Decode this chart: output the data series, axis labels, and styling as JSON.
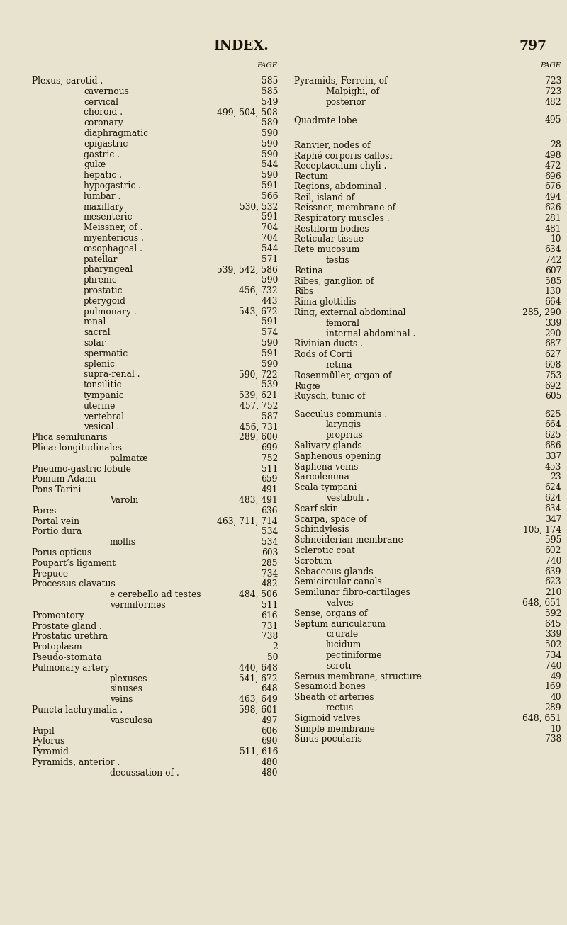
{
  "bg_color": "#e8e3ce",
  "text_color": "#1a1208",
  "title": "INDEX.",
  "page_num": "797",
  "left_entries": [
    {
      "text": "Plexus, carotid .",
      "indent": 0,
      "pages": "585"
    },
    {
      "text": "cavernous",
      "indent": 1,
      "pages": "585"
    },
    {
      "text": "cervical",
      "indent": 1,
      "pages": "549"
    },
    {
      "text": "choroid .",
      "indent": 1,
      "pages": "499, 504, 508"
    },
    {
      "text": "coronary",
      "indent": 1,
      "pages": "589"
    },
    {
      "text": "diaphragmatic",
      "indent": 1,
      "pages": "590"
    },
    {
      "text": "epigastric",
      "indent": 1,
      "pages": "590"
    },
    {
      "text": "gastric .",
      "indent": 1,
      "pages": "590"
    },
    {
      "text": "gulæ",
      "indent": 1,
      "pages": "544"
    },
    {
      "text": "hepatic .",
      "indent": 1,
      "pages": "590"
    },
    {
      "text": "hypogastric .",
      "indent": 1,
      "pages": "591"
    },
    {
      "text": "lumbar .",
      "indent": 1,
      "pages": "566"
    },
    {
      "text": "maxillary",
      "indent": 1,
      "pages": "530, 532"
    },
    {
      "text": "mesenteric",
      "indent": 1,
      "pages": "591"
    },
    {
      "text": "Meissner, of .",
      "indent": 1,
      "pages": "704"
    },
    {
      "text": "myentericus .",
      "indent": 1,
      "pages": "704"
    },
    {
      "text": "œsophageal .",
      "indent": 1,
      "pages": "544"
    },
    {
      "text": "patellar",
      "indent": 1,
      "pages": "571"
    },
    {
      "text": "pharyngeal",
      "indent": 1,
      "pages": "539, 542, 586"
    },
    {
      "text": "phrenic",
      "indent": 1,
      "pages": "590"
    },
    {
      "text": "prostatic",
      "indent": 1,
      "pages": "456, 732"
    },
    {
      "text": "pterygoid",
      "indent": 1,
      "pages": "443"
    },
    {
      "text": "pulmonary .",
      "indent": 1,
      "pages": "543, 672"
    },
    {
      "text": "renal",
      "indent": 1,
      "pages": "591"
    },
    {
      "text": "sacral",
      "indent": 1,
      "pages": "574"
    },
    {
      "text": "solar",
      "indent": 1,
      "pages": "590"
    },
    {
      "text": "spermatic",
      "indent": 1,
      "pages": "591"
    },
    {
      "text": "splenic",
      "indent": 1,
      "pages": "590"
    },
    {
      "text": "supra-renal .",
      "indent": 1,
      "pages": "590, 722"
    },
    {
      "text": "tonsilitic",
      "indent": 1,
      "pages": "539"
    },
    {
      "text": "tympanic",
      "indent": 1,
      "pages": "539, 621"
    },
    {
      "text": "uterine",
      "indent": 1,
      "pages": "457, 752"
    },
    {
      "text": "vertebral",
      "indent": 1,
      "pages": "587"
    },
    {
      "text": "vesical .",
      "indent": 1,
      "pages": "456, 731"
    },
    {
      "text": "Plica semilunaris",
      "indent": 0,
      "pages": "289, 600"
    },
    {
      "text": "Plicæ longitudinales",
      "indent": 0,
      "pages": "699"
    },
    {
      "text": "palmatæ",
      "indent": 2,
      "pages": "752"
    },
    {
      "text": "Pneumo-gastric lobule",
      "indent": 0,
      "pages": "511"
    },
    {
      "text": "Pomum Adami",
      "indent": 0,
      "pages": "659"
    },
    {
      "text": "Pons Tarini",
      "indent": 0,
      "pages": "491"
    },
    {
      "text": "Varolii",
      "indent": 2,
      "pages": "483, 491"
    },
    {
      "text": "Pores",
      "indent": 0,
      "pages": "636"
    },
    {
      "text": "Portal vein",
      "indent": 0,
      "pages": "463, 711, 714"
    },
    {
      "text": "Portio dura",
      "indent": 0,
      "pages": "534"
    },
    {
      "text": "mollis",
      "indent": 2,
      "pages": "534"
    },
    {
      "text": "Porus opticus",
      "indent": 0,
      "pages": "603"
    },
    {
      "text": "Poupart’s ligament",
      "indent": 0,
      "pages": "285"
    },
    {
      "text": "Prepuce",
      "indent": 0,
      "pages": "734"
    },
    {
      "text": "Processus clavatus",
      "indent": 0,
      "pages": "482"
    },
    {
      "text": "e cerebello ad testes",
      "indent": 2,
      "pages": "484, 506"
    },
    {
      "text": "vermiformes",
      "indent": 2,
      "pages": "511"
    },
    {
      "text": "Promontory",
      "indent": 0,
      "pages": "616"
    },
    {
      "text": "Prostate gland .",
      "indent": 0,
      "pages": "731"
    },
    {
      "text": "Prostatic urethra",
      "indent": 0,
      "pages": "738"
    },
    {
      "text": "Protoplasm",
      "indent": 0,
      "pages": "2"
    },
    {
      "text": "Pseudo-stomata",
      "indent": 0,
      "pages": "50"
    },
    {
      "text": "Pulmonary artery",
      "indent": 0,
      "pages": "440, 648"
    },
    {
      "text": "plexuses",
      "indent": 2,
      "pages": "541, 672"
    },
    {
      "text": "sinuses",
      "indent": 2,
      "pages": "648"
    },
    {
      "text": "veins",
      "indent": 2,
      "pages": "463, 649"
    },
    {
      "text": "Puncta lachrymalia .",
      "indent": 0,
      "pages": "598, 601"
    },
    {
      "text": "vasculosa",
      "indent": 2,
      "pages": "497"
    },
    {
      "text": "Pupil",
      "indent": 0,
      "pages": "606"
    },
    {
      "text": "Pylorus",
      "indent": 0,
      "pages": "690"
    },
    {
      "text": "Pyramid",
      "indent": 0,
      "pages": "511, 616"
    },
    {
      "text": "Pyramids, anterior .",
      "indent": 0,
      "pages": "480"
    },
    {
      "text": "decussation of .",
      "indent": 2,
      "pages": "480"
    }
  ],
  "right_entries": [
    {
      "text": "Pyramids, Ferrein, of",
      "indent": 0,
      "pages": "723"
    },
    {
      "text": "Malpighi, of",
      "indent": 2,
      "pages": "723"
    },
    {
      "text": "posterior",
      "indent": 2,
      "pages": "482"
    },
    {
      "text": "",
      "indent": 0,
      "pages": ""
    },
    {
      "text": "Quadrate lobe",
      "indent": 0,
      "pages": "495"
    },
    {
      "text": "",
      "indent": 0,
      "pages": ""
    },
    {
      "text": "",
      "indent": 0,
      "pages": ""
    },
    {
      "text": "Ranvier, nodes of",
      "indent": 0,
      "pages": "28"
    },
    {
      "text": "Raphé corporis callosi",
      "indent": 0,
      "pages": "498"
    },
    {
      "text": "Receptaculum chyli .",
      "indent": 0,
      "pages": "472"
    },
    {
      "text": "Rectum",
      "indent": 0,
      "pages": "696"
    },
    {
      "text": "Regions, abdominal .",
      "indent": 0,
      "pages": "676"
    },
    {
      "text": "Reil, island of",
      "indent": 0,
      "pages": "494"
    },
    {
      "text": "Reissner, membrane of",
      "indent": 0,
      "pages": "626"
    },
    {
      "text": "Respiratory muscles .",
      "indent": 0,
      "pages": "281"
    },
    {
      "text": "Restiform bodies",
      "indent": 0,
      "pages": "481"
    },
    {
      "text": "Reticular tissue",
      "indent": 0,
      "pages": "10"
    },
    {
      "text": "Rete mucosum",
      "indent": 0,
      "pages": "634"
    },
    {
      "text": "testis",
      "indent": 2,
      "pages": "742"
    },
    {
      "text": "Retina",
      "indent": 0,
      "pages": "607"
    },
    {
      "text": "Ribes, ganglion of",
      "indent": 0,
      "pages": "585"
    },
    {
      "text": "Ribs",
      "indent": 0,
      "pages": "130"
    },
    {
      "text": "Rima glottidis",
      "indent": 0,
      "pages": "664"
    },
    {
      "text": "Ring, external abdominal",
      "indent": 0,
      "pages": "285, 290"
    },
    {
      "text": "femoral",
      "indent": 2,
      "pages": "339"
    },
    {
      "text": "internal abdominal .",
      "indent": 2,
      "pages": "290"
    },
    {
      "text": "Rivinian ducts .",
      "indent": 0,
      "pages": "687"
    },
    {
      "text": "Rods of Corti",
      "indent": 0,
      "pages": "627"
    },
    {
      "text": "retina",
      "indent": 2,
      "pages": "608"
    },
    {
      "text": "Rosenmüller, organ of",
      "indent": 0,
      "pages": "753"
    },
    {
      "text": "Rugæ",
      "indent": 0,
      "pages": "692"
    },
    {
      "text": "Ruysch, tunic of",
      "indent": 0,
      "pages": "605"
    },
    {
      "text": "",
      "indent": 0,
      "pages": ""
    },
    {
      "text": "Sacculus communis .",
      "indent": 0,
      "pages": "625"
    },
    {
      "text": "laryngis",
      "indent": 2,
      "pages": "664"
    },
    {
      "text": "proprius",
      "indent": 2,
      "pages": "625"
    },
    {
      "text": "Salivary glands",
      "indent": 0,
      "pages": "686"
    },
    {
      "text": "Saphenous opening",
      "indent": 0,
      "pages": "337"
    },
    {
      "text": "Saphena veins",
      "indent": 0,
      "pages": "453"
    },
    {
      "text": "Sarcolemma",
      "indent": 0,
      "pages": "23"
    },
    {
      "text": "Scala tympani",
      "indent": 0,
      "pages": "624"
    },
    {
      "text": "vestibuli .",
      "indent": 2,
      "pages": "624"
    },
    {
      "text": "Scarf-skin",
      "indent": 0,
      "pages": "634"
    },
    {
      "text": "Scarpa, space of",
      "indent": 0,
      "pages": "347"
    },
    {
      "text": "Schindylesis",
      "indent": 0,
      "pages": "105, 174"
    },
    {
      "text": "Schneiderian membrane",
      "indent": 0,
      "pages": "595"
    },
    {
      "text": "Sclerotic coat",
      "indent": 0,
      "pages": "602"
    },
    {
      "text": "Scrotum",
      "indent": 0,
      "pages": "740"
    },
    {
      "text": "Sebaceous glands",
      "indent": 0,
      "pages": "639"
    },
    {
      "text": "Semicircular canals",
      "indent": 0,
      "pages": "623"
    },
    {
      "text": "Semilunar fibro-cartilages",
      "indent": 0,
      "pages": "210"
    },
    {
      "text": "valves",
      "indent": 2,
      "pages": "648, 651"
    },
    {
      "text": "Sense, organs of",
      "indent": 0,
      "pages": "592"
    },
    {
      "text": "Septum auricularum",
      "indent": 0,
      "pages": "645"
    },
    {
      "text": "crurale",
      "indent": 2,
      "pages": "339"
    },
    {
      "text": "lucidum",
      "indent": 2,
      "pages": "502"
    },
    {
      "text": "pectiniforme",
      "indent": 2,
      "pages": "734"
    },
    {
      "text": "scroti",
      "indent": 2,
      "pages": "740"
    },
    {
      "text": "Serous membrane, structure",
      "indent": 0,
      "pages": "49"
    },
    {
      "text": "Sesamoid bones",
      "indent": 0,
      "pages": "169"
    },
    {
      "text": "Sheath of arteries",
      "indent": 0,
      "pages": "40"
    },
    {
      "text": "rectus",
      "indent": 2,
      "pages": "289"
    },
    {
      "text": "Sigmoid valves",
      "indent": 0,
      "pages": "648, 651"
    },
    {
      "text": "Simple membrane",
      "indent": 0,
      "pages": "10"
    },
    {
      "text": "Sinus pocularis",
      "indent": 0,
      "pages": "738"
    }
  ]
}
